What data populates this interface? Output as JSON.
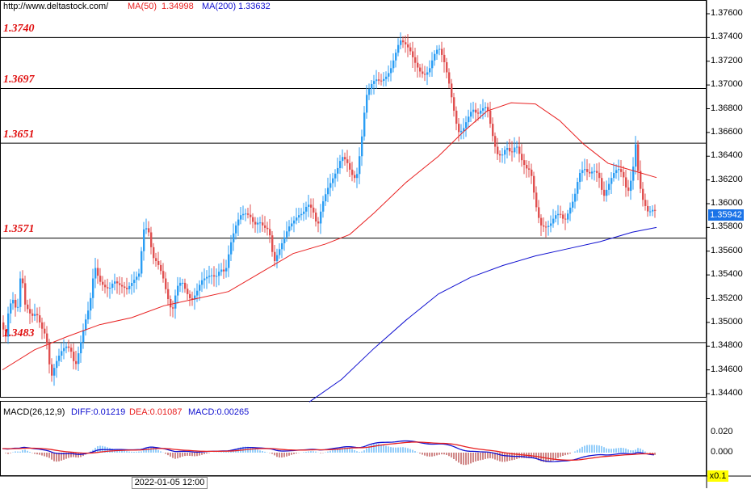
{
  "header": {
    "source": "http://www.deltastock.com/",
    "ma50_label": "MA(50)",
    "ma50_value": "1.34998",
    "ma200_label": "MA(200)",
    "ma200_value": "1.33632"
  },
  "levels": [
    {
      "label": "1.3740",
      "value": 1.374
    },
    {
      "label": "1.3697",
      "value": 1.3697
    },
    {
      "label": "1.3651",
      "value": 1.3651
    },
    {
      "label": "1.3571",
      "value": 1.3571
    },
    {
      "label": "1.3483",
      "value": 1.3483
    }
  ],
  "price_axis": {
    "ticks": [
      "1.37600",
      "1.37400",
      "1.37200",
      "1.37000",
      "1.36800",
      "1.36600",
      "1.36400",
      "1.36200",
      "1.36000",
      "1.35800",
      "1.35600",
      "1.35400",
      "1.35200",
      "1.35000",
      "1.34800",
      "1.34600",
      "1.34400"
    ],
    "current_price": "1.35942"
  },
  "macd": {
    "label": "MACD(26,12,9)",
    "diff_label": "DIFF:0.01219",
    "dea_label": "DEA:0.01087",
    "macd_label": "MACD:0.00265",
    "ticks": [
      "0.020",
      "0.000"
    ],
    "zoom": "x0.1"
  },
  "time_axis": {
    "cursor_date": "2022-01-05 12:00"
  },
  "colors": {
    "up": "#2a9df4",
    "down": "#e05050",
    "ma50": "#e82020",
    "ma200": "#1010d0",
    "level": "#e01010"
  },
  "chart_data": {
    "type": "candlestick",
    "ylim": [
      1.3433,
      1.377
    ],
    "price": [
      [
        0,
        1.35
      ],
      [
        6,
        1.3488
      ],
      [
        10,
        1.3514
      ],
      [
        16,
        1.352
      ],
      [
        20,
        1.3505
      ],
      [
        25,
        1.3545
      ],
      [
        30,
        1.3515
      ],
      [
        38,
        1.3505
      ],
      [
        44,
        1.3508
      ],
      [
        50,
        1.3496
      ],
      [
        56,
        1.3488
      ],
      [
        62,
        1.3453
      ],
      [
        68,
        1.3466
      ],
      [
        74,
        1.3475
      ],
      [
        80,
        1.348
      ],
      [
        86,
        1.3478
      ],
      [
        92,
        1.3462
      ],
      [
        98,
        1.348
      ],
      [
        104,
        1.35
      ],
      [
        110,
        1.3515
      ],
      [
        116,
        1.3548
      ],
      [
        122,
        1.3535
      ],
      [
        128,
        1.353
      ],
      [
        134,
        1.3528
      ],
      [
        140,
        1.3535
      ],
      [
        148,
        1.3531
      ],
      [
        156,
        1.3528
      ],
      [
        164,
        1.3535
      ],
      [
        172,
        1.3542
      ],
      [
        176,
        1.3578
      ],
      [
        182,
        1.358
      ],
      [
        188,
        1.3555
      ],
      [
        194,
        1.355
      ],
      [
        200,
        1.354
      ],
      [
        206,
        1.3522
      ],
      [
        212,
        1.3508
      ],
      [
        218,
        1.353
      ],
      [
        224,
        1.3535
      ],
      [
        230,
        1.3525
      ],
      [
        236,
        1.3518
      ],
      [
        242,
        1.3525
      ],
      [
        248,
        1.3535
      ],
      [
        254,
        1.3538
      ],
      [
        260,
        1.354
      ],
      [
        266,
        1.3538
      ],
      [
        272,
        1.3545
      ],
      [
        278,
        1.3542
      ],
      [
        284,
        1.3565
      ],
      [
        290,
        1.358
      ],
      [
        296,
        1.359
      ],
      [
        302,
        1.3592
      ],
      [
        308,
        1.359
      ],
      [
        314,
        1.3582
      ],
      [
        320,
        1.3585
      ],
      [
        326,
        1.358
      ],
      [
        332,
        1.3578
      ],
      [
        338,
        1.355
      ],
      [
        344,
        1.356
      ],
      [
        350,
        1.357
      ],
      [
        356,
        1.358
      ],
      [
        362,
        1.3585
      ],
      [
        368,
        1.359
      ],
      [
        374,
        1.3592
      ],
      [
        380,
        1.36
      ],
      [
        386,
        1.3595
      ],
      [
        392,
        1.358
      ],
      [
        398,
        1.36
      ],
      [
        404,
        1.3612
      ],
      [
        410,
        1.362
      ],
      [
        416,
        1.3628
      ],
      [
        422,
        1.364
      ],
      [
        428,
        1.3636
      ],
      [
        434,
        1.3625
      ],
      [
        440,
        1.362
      ],
      [
        446,
        1.365
      ],
      [
        452,
        1.369
      ],
      [
        458,
        1.37
      ],
      [
        464,
        1.3705
      ],
      [
        470,
        1.3703
      ],
      [
        476,
        1.3706
      ],
      [
        482,
        1.3712
      ],
      [
        488,
        1.3725
      ],
      [
        494,
        1.3738
      ],
      [
        500,
        1.3735
      ],
      [
        506,
        1.373
      ],
      [
        512,
        1.372
      ],
      [
        518,
        1.3712
      ],
      [
        524,
        1.3708
      ],
      [
        530,
        1.3712
      ],
      [
        536,
        1.3725
      ],
      [
        542,
        1.3732
      ],
      [
        548,
        1.3722
      ],
      [
        554,
        1.3705
      ],
      [
        560,
        1.3682
      ],
      [
        566,
        1.366
      ],
      [
        572,
        1.3662
      ],
      [
        578,
        1.3672
      ],
      [
        584,
        1.368
      ],
      [
        590,
        1.3675
      ],
      [
        596,
        1.368
      ],
      [
        602,
        1.3682
      ],
      [
        608,
        1.366
      ],
      [
        614,
        1.3642
      ],
      [
        620,
        1.364
      ],
      [
        626,
        1.3648
      ],
      [
        632,
        1.3642
      ],
      [
        638,
        1.365
      ],
      [
        644,
        1.3638
      ],
      [
        650,
        1.363
      ],
      [
        656,
        1.3628
      ],
      [
        662,
        1.36
      ],
      [
        668,
        1.3582
      ],
      [
        674,
        1.358
      ],
      [
        680,
        1.3582
      ],
      [
        686,
        1.359
      ],
      [
        692,
        1.3592
      ],
      [
        698,
        1.3585
      ],
      [
        704,
        1.3595
      ],
      [
        710,
        1.3605
      ],
      [
        716,
        1.3625
      ],
      [
        722,
        1.363
      ],
      [
        728,
        1.3625
      ],
      [
        734,
        1.3628
      ],
      [
        740,
        1.3625
      ],
      [
        746,
        1.3605
      ],
      [
        752,
        1.3615
      ],
      [
        758,
        1.3625
      ],
      [
        764,
        1.363
      ],
      [
        770,
        1.3625
      ],
      [
        776,
        1.3608
      ],
      [
        782,
        1.3625
      ],
      [
        786,
        1.365
      ],
      [
        790,
        1.362
      ],
      [
        794,
        1.3605
      ],
      [
        798,
        1.3598
      ],
      [
        802,
        1.3592
      ],
      [
        806,
        1.3595
      ],
      [
        810,
        1.3594
      ]
    ],
    "ma50": [
      [
        0,
        1.346
      ],
      [
        40,
        1.3477
      ],
      [
        80,
        1.3488
      ],
      [
        120,
        1.3498
      ],
      [
        160,
        1.3504
      ],
      [
        200,
        1.3514
      ],
      [
        240,
        1.352
      ],
      [
        280,
        1.3526
      ],
      [
        320,
        1.3542
      ],
      [
        360,
        1.3558
      ],
      [
        400,
        1.3566
      ],
      [
        430,
        1.3574
      ],
      [
        460,
        1.3592
      ],
      [
        500,
        1.3618
      ],
      [
        540,
        1.364
      ],
      [
        570,
        1.366
      ],
      [
        600,
        1.3678
      ],
      [
        630,
        1.3685
      ],
      [
        660,
        1.3684
      ],
      [
        690,
        1.367
      ],
      [
        720,
        1.365
      ],
      [
        750,
        1.3634
      ],
      [
        780,
        1.3628
      ],
      [
        810,
        1.3622
      ]
    ],
    "ma200": [
      [
        380,
        1.3433
      ],
      [
        420,
        1.3452
      ],
      [
        460,
        1.3478
      ],
      [
        500,
        1.3502
      ],
      [
        540,
        1.3524
      ],
      [
        580,
        1.3538
      ],
      [
        620,
        1.3548
      ],
      [
        660,
        1.3556
      ],
      [
        700,
        1.3562
      ],
      [
        740,
        1.3568
      ],
      [
        780,
        1.3576
      ],
      [
        810,
        1.358
      ]
    ]
  }
}
